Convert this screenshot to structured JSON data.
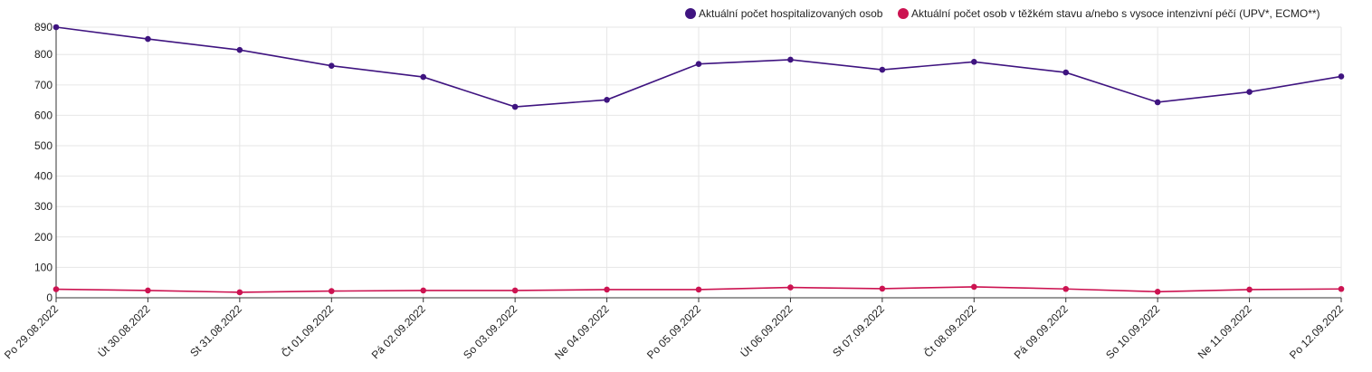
{
  "chart_data": {
    "type": "line",
    "title": "",
    "xlabel": "",
    "ylabel": "",
    "categories": [
      "Po 29.08.2022",
      "Út 30.08.2022",
      "St 31.08.2022",
      "Čt 01.09.2022",
      "Pá 02.09.2022",
      "So 03.09.2022",
      "Ne 04.09.2022",
      "Po 05.09.2022",
      "Út 06.09.2022",
      "St 07.09.2022",
      "Čt 08.09.2022",
      "Pá 09.09.2022",
      "So 10.09.2022",
      "Ne 11.09.2022",
      "Po 12.09.2022"
    ],
    "series": [
      {
        "name": "Aktuální počet hospitalizovaných osob",
        "color": "#3f1480",
        "values": [
          890,
          851,
          815,
          763,
          726,
          628,
          651,
          769,
          783,
          750,
          776,
          741,
          643,
          677,
          728
        ]
      },
      {
        "name": "Aktuální počet osob v těžkém stavu a/nebo s vysoce intenzivní péčí (UPV*, ECMO**)",
        "color": "#cc1351",
        "values": [
          28,
          24,
          18,
          22,
          24,
          24,
          27,
          27,
          34,
          30,
          36,
          29,
          20,
          27,
          29
        ]
      }
    ],
    "ylim": [
      0,
      890
    ],
    "yticks": [
      0,
      100,
      200,
      300,
      400,
      500,
      600,
      700,
      800,
      890
    ],
    "grid": true,
    "legend_position": "top-right"
  }
}
